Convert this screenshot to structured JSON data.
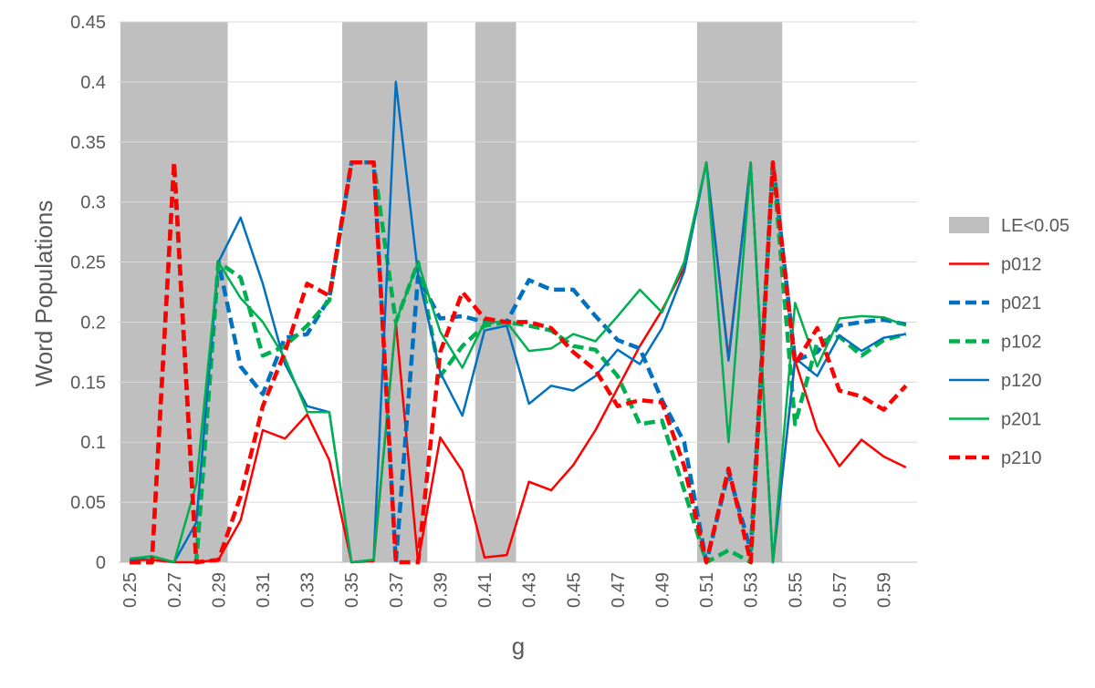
{
  "chart_data": {
    "type": "line",
    "xlabel": "g",
    "ylabel": "Word Populations",
    "ylim": [
      0,
      0.45
    ],
    "y_ticks": [
      "0",
      "0.05",
      "0.1",
      "0.15",
      "0.2",
      "0.25",
      "0.3",
      "0.35",
      "0.4",
      "0.45"
    ],
    "x_ticks": [
      "0.25",
      "0.27",
      "0.29",
      "0.31",
      "0.33",
      "0.35",
      "0.37",
      "0.39",
      "0.41",
      "0.43",
      "0.45",
      "0.47",
      "0.49",
      "0.51",
      "0.53",
      "0.55",
      "0.57",
      "0.59"
    ],
    "x": [
      0.25,
      0.26,
      0.27,
      0.28,
      0.29,
      0.3,
      0.31,
      0.32,
      0.33,
      0.34,
      0.35,
      0.36,
      0.37,
      0.38,
      0.39,
      0.4,
      0.41,
      0.42,
      0.43,
      0.44,
      0.45,
      0.46,
      0.47,
      0.48,
      0.49,
      0.5,
      0.51,
      0.52,
      0.53,
      0.54,
      0.55,
      0.56,
      0.57,
      0.58,
      0.59,
      0.6
    ],
    "grid": "horizontal",
    "legend_position": "right",
    "shaded_regions": {
      "name": "LE<0.05",
      "color": "#bfbfbf",
      "ranges": [
        [
          0.25,
          0.29
        ],
        [
          0.35,
          0.38
        ],
        [
          0.41,
          0.42
        ],
        [
          0.51,
          0.54
        ]
      ]
    },
    "series": [
      {
        "name": "p012",
        "color": "#ff0000",
        "dashed": false,
        "values": [
          0.002,
          0.002,
          0,
          0,
          0.002,
          0.035,
          0.11,
          0.103,
          0.123,
          0.085,
          0,
          0.001,
          0.2,
          0,
          0.104,
          0.076,
          0.004,
          0.006,
          0.067,
          0.06,
          0.081,
          0.11,
          0.145,
          0.18,
          0.21,
          0.245,
          0.333,
          0.17,
          0.333,
          0,
          0.168,
          0.11,
          0.08,
          0.102,
          0.088,
          0.079
        ]
      },
      {
        "name": "p021",
        "color": "#0070c0",
        "dashed": true,
        "values": [
          0,
          0,
          0.333,
          0,
          0.25,
          0.163,
          0.14,
          0.187,
          0.19,
          0.22,
          0.333,
          0.333,
          0,
          0.238,
          0.203,
          0.205,
          0.2,
          0.2,
          0.235,
          0.227,
          0.227,
          0.205,
          0.185,
          0.178,
          0.135,
          0.1,
          0,
          0.075,
          0.01,
          0.333,
          0.168,
          0.175,
          0.197,
          0.2,
          0.202,
          0.198
        ]
      },
      {
        "name": "p102",
        "color": "#00b050",
        "dashed": true,
        "values": [
          0,
          0,
          0.333,
          0,
          0.25,
          0.237,
          0.172,
          0.18,
          0.197,
          0.218,
          0.333,
          0.333,
          0.2,
          0.25,
          0.155,
          0.18,
          0.197,
          0.2,
          0.197,
          0.193,
          0.18,
          0.177,
          0.155,
          0.115,
          0.118,
          0.06,
          0,
          0.01,
          0,
          0.333,
          0.115,
          0.183,
          0.188,
          0.172,
          0.185,
          0.19
        ]
      },
      {
        "name": "p120",
        "color": "#0070c0",
        "dashed": false,
        "values": [
          0.002,
          0.005,
          0,
          0.033,
          0.25,
          0.287,
          0.232,
          0.165,
          0.13,
          0.125,
          0,
          0.002,
          0.4,
          0.24,
          0.158,
          0.122,
          0.193,
          0.197,
          0.132,
          0.147,
          0.143,
          0.155,
          0.177,
          0.165,
          0.195,
          0.242,
          0.333,
          0.168,
          0.333,
          0,
          0.17,
          0.155,
          0.189,
          0.176,
          0.187,
          0.19
        ]
      },
      {
        "name": "p201",
        "color": "#00b050",
        "dashed": false,
        "values": [
          0.003,
          0.005,
          0,
          0.065,
          0.25,
          0.22,
          0.2,
          0.17,
          0.125,
          0.125,
          0,
          0.002,
          0.2,
          0.25,
          0.192,
          0.162,
          0.2,
          0.2,
          0.176,
          0.178,
          0.19,
          0.184,
          0.205,
          0.227,
          0.208,
          0.25,
          0.333,
          0.1,
          0.333,
          0,
          0.216,
          0.163,
          0.203,
          0.205,
          0.204,
          0.197
        ]
      },
      {
        "name": "p210",
        "color": "#ff0000",
        "dashed": true,
        "values": [
          0,
          0,
          0.333,
          0,
          0.002,
          0.055,
          0.13,
          0.175,
          0.232,
          0.222,
          0.333,
          0.333,
          0,
          0,
          0.175,
          0.225,
          0.203,
          0.2,
          0.2,
          0.195,
          0.175,
          0.16,
          0.13,
          0.135,
          0.133,
          0.08,
          0,
          0.078,
          0,
          0.333,
          0.165,
          0.195,
          0.143,
          0.138,
          0.127,
          0.147
        ]
      }
    ]
  }
}
